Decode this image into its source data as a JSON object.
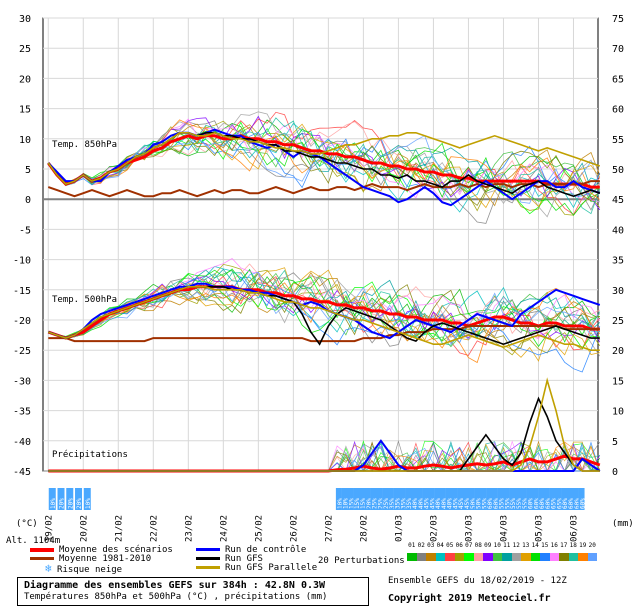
{
  "title": "Diagramme des ensembles GEFS sur 384h : 42.8N 0.3W",
  "subtitle": "Températures 850hPa et 500hPa (°C) , précipitations (mm)",
  "run_info": "Ensemble GEFS du 18/02/2019 - 12Z",
  "copyright": "Copyright 2019 Meteociel.fr",
  "altitude_label": "Alt. 1104m",
  "unit_left": "(°C)",
  "unit_right": "(mm)",
  "panel_labels": {
    "t850": "Temp. 850hPa",
    "t500": "Temp. 500hPa",
    "precip": "Précipitations"
  },
  "legend": {
    "moyenne": "Moyenne des scénarios",
    "normale": "Moyenne 1981-2010",
    "snow": "Risque neige",
    "controle": "Run de contrôle",
    "gfs": "Run GFS",
    "gfs_para": "Run GFS Parallele",
    "perturbations": "20 Perturbations",
    "pert_numbers": [
      "01",
      "02",
      "03",
      "04",
      "05",
      "06",
      "07",
      "08",
      "09",
      "10",
      "11",
      "12",
      "13",
      "14",
      "15",
      "16",
      "17",
      "18",
      "19",
      "20"
    ],
    "pert_colors": [
      "#00bb00",
      "#808080",
      "#c08000",
      "#00c0c0",
      "#ff4040",
      "#a0a000",
      "#00ff00",
      "#ffa0a0",
      "#8000ff",
      "#40c040",
      "#00a0a0",
      "#a0a0a0",
      "#e0a000",
      "#00e000",
      "#2080ff",
      "#ff80ff",
      "#808000",
      "#20c0a0",
      "#ff8000",
      "#60a0ff"
    ]
  },
  "colors": {
    "moyenne": "#ff0000",
    "normale": "#a03000",
    "controle": "#0000ff",
    "gfs": "#000000",
    "gfs_para": "#c0a000",
    "snow": "#4aa8ff",
    "zero_line": "#808080"
  },
  "chart_data": {
    "type": "line",
    "x_ticks": [
      "19/02",
      "20/02",
      "21/02",
      "22/02",
      "23/02",
      "24/02",
      "25/02",
      "26/02",
      "27/02",
      "28/02",
      "01/03",
      "02/03",
      "03/03",
      "04/03",
      "05/03",
      "06/03"
    ],
    "y_left_ticks": [
      30,
      25,
      20,
      15,
      10,
      5,
      0,
      -5,
      -10,
      -15,
      -20,
      -25,
      -30,
      -35,
      -40,
      -45
    ],
    "y_right_ticks": [
      75,
      70,
      65,
      60,
      55,
      50,
      45,
      40,
      35,
      30,
      25,
      20,
      15,
      10,
      5,
      0
    ],
    "ylim_left": [
      -45,
      30
    ],
    "ylim_right": [
      0,
      75
    ],
    "snow_risk_percent": {
      "early": [
        "10%",
        "20%",
        "20%",
        "20%",
        "10%"
      ],
      "late": [
        "10%",
        "10%",
        "15%",
        "15%",
        "15%",
        "20%",
        "25%",
        "25%",
        "25%",
        "35%",
        "35%",
        "35%",
        "35%",
        "40%",
        "40%",
        "45%",
        "45%",
        "40%",
        "40%",
        "40%",
        "45%",
        "45%",
        "45%",
        "50%",
        "50%",
        "55%",
        "60%",
        "60%",
        "55%",
        "55%",
        "55%",
        "55%",
        "55%",
        "60%",
        "60%",
        "60%",
        "60%",
        "65%",
        "65%",
        "60%",
        "60%",
        "60%",
        "60%"
      ]
    },
    "series": [
      {
        "name": "Moyenne des scénarios",
        "key": "t850_mean",
        "x_step_days": 0.25,
        "values": [
          6,
          4,
          2.5,
          3,
          4,
          3,
          3.5,
          4.5,
          5,
          6,
          6.5,
          7,
          8,
          8.5,
          9.5,
          10,
          10.5,
          10,
          10.5,
          10.5,
          10,
          10,
          10.5,
          10,
          10,
          9.5,
          9.5,
          9,
          9,
          8.5,
          8,
          8,
          7.5,
          7.5,
          7,
          7,
          6.5,
          6,
          6,
          5.5,
          5.5,
          5,
          5,
          4.5,
          4.5,
          4,
          4,
          3.5,
          3.5,
          3,
          3,
          3,
          3,
          3,
          3,
          3,
          3,
          2.5,
          2.5,
          2.5,
          2.5,
          2.5,
          2,
          2
        ]
      },
      {
        "name": "Moyenne 1981-2010",
        "key": "t850_norm",
        "x_step_days": 0.25,
        "values": [
          2,
          1.5,
          1,
          0.5,
          1,
          1.5,
          1,
          0.5,
          1,
          1.5,
          1,
          0.5,
          0.5,
          1,
          1,
          1.5,
          1,
          0.5,
          1,
          1.5,
          1,
          1.5,
          1.5,
          1,
          1,
          1.5,
          2,
          1.5,
          1,
          1.5,
          2,
          1.5,
          1.5,
          2,
          2,
          1.5,
          2,
          2.5,
          2,
          2,
          2,
          1.5,
          2,
          2.5,
          2,
          2,
          2,
          2.5,
          2,
          2.5,
          2,
          2.5,
          2.5,
          2,
          2.5,
          2.5,
          2,
          2.5,
          2.5,
          2.5,
          2.5,
          2.5,
          3,
          3
        ]
      },
      {
        "name": "Run de contrôle",
        "key": "t850_ctrl",
        "x_step_days": 0.25,
        "values": [
          6,
          4.5,
          3,
          3,
          4,
          3,
          3,
          4.5,
          5.5,
          6.5,
          7,
          7.5,
          9,
          9.5,
          10.5,
          11,
          11,
          10.5,
          11,
          11.5,
          11,
          10.5,
          10.5,
          9.5,
          9,
          8.5,
          9,
          8,
          7,
          8,
          7.5,
          7,
          6,
          5,
          4,
          3,
          2,
          1.5,
          1,
          0.5,
          -0.5,
          0,
          1,
          2,
          1,
          -0.5,
          -1,
          0,
          1,
          2,
          3,
          2,
          1,
          0,
          1,
          2,
          3,
          3,
          2,
          2,
          3,
          2,
          1.5,
          1
        ]
      },
      {
        "name": "Run GFS",
        "key": "t850_gfs",
        "x_step_days": 0.25,
        "values": [
          6,
          4,
          2.5,
          3,
          4,
          3,
          3.5,
          4.5,
          5,
          6,
          7,
          7.5,
          8.5,
          9,
          10,
          11,
          11,
          10.5,
          11,
          11,
          10.5,
          10.5,
          10,
          10,
          9.5,
          9,
          9,
          8,
          8,
          7.5,
          7,
          7,
          6.5,
          6,
          6,
          5.5,
          5,
          5,
          4,
          4,
          3.5,
          4,
          3,
          3,
          2.5,
          2,
          3,
          3,
          4,
          3,
          2.5,
          2,
          1.5,
          1,
          2,
          2.5,
          3,
          2,
          1.5,
          1,
          0.5,
          1,
          1.5,
          1
        ]
      },
      {
        "name": "Run GFS Parallele",
        "key": "t850_para",
        "x_step_days": 0.25,
        "values": [
          6,
          4,
          2.5,
          3,
          4,
          3,
          3.5,
          4.5,
          5,
          6,
          7,
          7.5,
          8.5,
          9,
          10,
          11,
          11,
          10.5,
          10.5,
          11,
          10.5,
          10,
          10,
          9.5,
          9.5,
          9,
          8.5,
          8.5,
          8,
          8,
          7.5,
          7.5,
          8,
          8.5,
          9,
          9,
          9.5,
          10,
          10,
          10.5,
          10.5,
          11,
          11,
          10.5,
          10,
          9.5,
          9,
          8.5,
          9,
          9.5,
          10,
          10.5,
          10,
          9.5,
          9,
          8.5,
          8,
          8.5,
          8,
          7.5,
          7,
          6.5,
          6,
          5.5
        ]
      },
      {
        "name": "Moyenne des scénarios",
        "key": "t500_mean",
        "x_step_days": 0.25,
        "values": [
          -22,
          -22.5,
          -23,
          -22.5,
          -22,
          -21,
          -20,
          -19,
          -18.5,
          -18,
          -17.5,
          -17,
          -16.5,
          -16,
          -15.5,
          -15,
          -15,
          -14.5,
          -14.5,
          -14.5,
          -14.5,
          -14.5,
          -15,
          -15,
          -15,
          -15.5,
          -15.5,
          -16,
          -16,
          -16.5,
          -16.5,
          -17,
          -17,
          -17.5,
          -17.5,
          -18,
          -18,
          -18.5,
          -18.5,
          -19,
          -19,
          -19.5,
          -19.5,
          -20,
          -20,
          -20,
          -20.5,
          -20.5,
          -21,
          -20.5,
          -20,
          -19.5,
          -19.5,
          -20,
          -20.5,
          -20.5,
          -21,
          -20.5,
          -20.5,
          -21,
          -21,
          -21,
          -21.5,
          -21.5
        ]
      },
      {
        "name": "Moyenne 1981-2010",
        "key": "t500_norm",
        "x_step_days": 0.25,
        "values": [
          -23,
          -23,
          -23,
          -23.5,
          -23.5,
          -23.5,
          -23.5,
          -23.5,
          -23.5,
          -23.5,
          -23.5,
          -23.5,
          -23,
          -23,
          -23,
          -23,
          -23,
          -23,
          -23,
          -23,
          -23,
          -23,
          -23,
          -23,
          -23,
          -23,
          -23,
          -23,
          -23,
          -23,
          -23.5,
          -23.5,
          -23.5,
          -23.5,
          -23.5,
          -23.5,
          -23,
          -23,
          -23,
          -22.5,
          -22.5,
          -22,
          -22,
          -22,
          -21.5,
          -21.5,
          -21.5,
          -21.5,
          -21,
          -21,
          -21,
          -21,
          -21,
          -21,
          -21,
          -21,
          -21,
          -21,
          -21,
          -21.5,
          -21.5,
          -21.5,
          -21.5,
          -21.5
        ]
      },
      {
        "name": "Run de contrôle",
        "key": "t500_ctrl",
        "x_step_days": 0.25,
        "values": [
          -22,
          -22.5,
          -23,
          -22.5,
          -21.5,
          -20,
          -19,
          -18.5,
          -18,
          -17.5,
          -17,
          -16.5,
          -16,
          -15.5,
          -15,
          -14.5,
          -14.5,
          -14,
          -14,
          -14.5,
          -14.5,
          -14.5,
          -15,
          -15,
          -15.5,
          -15.5,
          -16,
          -16.5,
          -17,
          -17.5,
          -17,
          -17.5,
          -18.5,
          -19,
          -19.5,
          -20,
          -21,
          -22,
          -22.5,
          -23,
          -22,
          -21,
          -20,
          -20.5,
          -21,
          -21.5,
          -22,
          -21,
          -20,
          -19,
          -19.5,
          -20,
          -20.5,
          -21,
          -19,
          -18,
          -17,
          -16,
          -15,
          -15.5,
          -16,
          -16.5,
          -17,
          -17.5
        ]
      },
      {
        "name": "Run GFS",
        "key": "t500_gfs",
        "x_step_days": 0.25,
        "values": [
          -22,
          -22.5,
          -23,
          -22.5,
          -21.5,
          -20.5,
          -19.5,
          -19,
          -18.5,
          -18,
          -17.5,
          -17,
          -16.5,
          -16,
          -15.5,
          -15,
          -14.5,
          -14.5,
          -14.5,
          -14.5,
          -14.5,
          -15,
          -15,
          -15.5,
          -15.5,
          -16,
          -16,
          -16.5,
          -17,
          -19,
          -22,
          -24,
          -21,
          -19,
          -18,
          -18.5,
          -19,
          -19.5,
          -20,
          -21,
          -22,
          -23,
          -23.5,
          -22,
          -21,
          -20.5,
          -21,
          -21.5,
          -22,
          -22.5,
          -23,
          -23.5,
          -24,
          -23.5,
          -23,
          -22.5,
          -22,
          -21.5,
          -21,
          -21.5,
          -22,
          -22.5,
          -23,
          -23
        ]
      },
      {
        "name": "Run GFS Parallele",
        "key": "t500_para",
        "x_step_days": 0.25,
        "values": [
          -22,
          -22.5,
          -23,
          -22.5,
          -21.5,
          -20.5,
          -19.5,
          -19,
          -18.5,
          -18,
          -17.5,
          -17,
          -16.5,
          -16,
          -15.5,
          -15,
          -14.5,
          -14.5,
          -14.5,
          -15,
          -15,
          -15,
          -15,
          -15.5,
          -15.5,
          -16,
          -16.5,
          -17,
          -17,
          -17.5,
          -18,
          -18,
          -18.5,
          -19,
          -19.5,
          -20,
          -20,
          -20.5,
          -21,
          -21.5,
          -22,
          -22.5,
          -23,
          -23.5,
          -24,
          -24,
          -23.5,
          -23,
          -22.5,
          -23,
          -23.5,
          -24,
          -24.5,
          -24,
          -23.5,
          -23,
          -22.5,
          -23,
          -23.5,
          -24,
          -24,
          -24.5,
          -25,
          -25
        ]
      },
      {
        "name": "Moyenne des scénarios",
        "key": "precip_mean",
        "x_step_days": 0.25,
        "values": [
          0,
          0,
          0,
          0,
          0,
          0,
          0,
          0,
          0,
          0,
          0,
          0,
          0,
          0,
          0,
          0,
          0,
          0,
          0,
          0,
          0,
          0,
          0,
          0,
          0,
          0,
          0,
          0,
          0,
          0,
          0,
          0,
          0,
          0.2,
          0.3,
          0.5,
          0.8,
          0.5,
          0.3,
          0.5,
          0.8,
          0.5,
          0.5,
          0.8,
          1,
          0.8,
          0.5,
          0.8,
          1,
          1.2,
          1,
          1.2,
          1.5,
          1,
          1.5,
          2,
          1.5,
          1.5,
          2,
          2.5,
          2,
          2,
          1.5,
          1
        ]
      },
      {
        "name": "Run de contrôle",
        "key": "precip_ctrl",
        "x_step_days": 0.25,
        "values": [
          0,
          0,
          0,
          0,
          0,
          0,
          0,
          0,
          0,
          0,
          0,
          0,
          0,
          0,
          0,
          0,
          0,
          0,
          0,
          0,
          0,
          0,
          0,
          0,
          0,
          0,
          0,
          0,
          0,
          0,
          0,
          0,
          0,
          0,
          0,
          0,
          1,
          3,
          5,
          3,
          1,
          0,
          0,
          0,
          0,
          0,
          0,
          0,
          0,
          0,
          0,
          0,
          0,
          0,
          0,
          0,
          0,
          0,
          0,
          0,
          0,
          2,
          1,
          0
        ]
      },
      {
        "name": "Run GFS",
        "key": "precip_gfs",
        "x_step_days": 0.25,
        "values": [
          0,
          0,
          0,
          0,
          0,
          0,
          0,
          0,
          0,
          0,
          0,
          0,
          0,
          0,
          0,
          0,
          0,
          0,
          0,
          0,
          0,
          0,
          0,
          0,
          0,
          0,
          0,
          0,
          0,
          0,
          0,
          0,
          0,
          0,
          0,
          0,
          0,
          0,
          0,
          0,
          0,
          0,
          0,
          0,
          0,
          0,
          0,
          0,
          2,
          4,
          6,
          4,
          2,
          1,
          3,
          8,
          12,
          9,
          5,
          3,
          1,
          0,
          0,
          0
        ]
      },
      {
        "name": "Run GFS Parallele",
        "key": "precip_para",
        "x_step_days": 0.25,
        "values": [
          0,
          0,
          0,
          0,
          0,
          0,
          0,
          0,
          0,
          0,
          0,
          0,
          0,
          0,
          0,
          0,
          0,
          0,
          0,
          0,
          0,
          0,
          0,
          0,
          0,
          0,
          0,
          0,
          0,
          0,
          0,
          0,
          0,
          0,
          0,
          0,
          0,
          0,
          0,
          0,
          0,
          0,
          0,
          0,
          0,
          0,
          0,
          0,
          0,
          0,
          0,
          0,
          0,
          0,
          1,
          4,
          9,
          15,
          10,
          4,
          1,
          0,
          0,
          0
        ]
      }
    ]
  }
}
